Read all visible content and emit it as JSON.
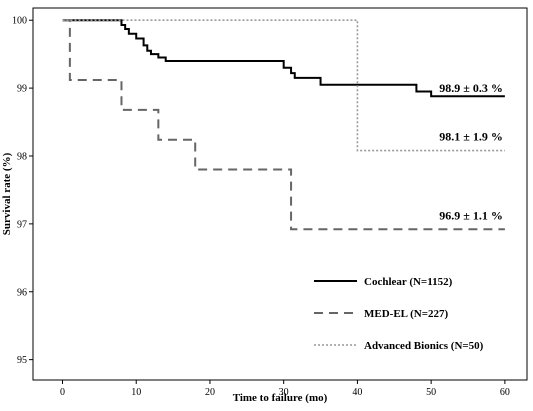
{
  "chart_data": {
    "type": "line",
    "step": true,
    "title": "",
    "xlabel": "Time to failure (mo)",
    "ylabel": "Survival rate (%)",
    "xlim": [
      -4,
      63
    ],
    "ylim": [
      94.7,
      100.18
    ],
    "xticks": [
      "0",
      "10",
      "20",
      "30",
      "40",
      "50",
      "60"
    ],
    "yticks": [
      "95",
      "96",
      "97",
      "98",
      "99",
      "100"
    ],
    "grid": false,
    "legend_position": "bottom-right",
    "series": [
      {
        "name": "Cochlear (N=1152)",
        "color": "#000000",
        "style": "solid",
        "x": [
          0,
          8,
          8.5,
          9,
          10,
          11,
          11.5,
          12,
          13,
          14,
          20,
          30,
          31,
          31.5,
          35,
          40,
          48,
          50,
          60
        ],
        "y": [
          100,
          99.93,
          99.87,
          99.8,
          99.73,
          99.63,
          99.55,
          99.5,
          99.45,
          99.4,
          99.4,
          99.3,
          99.22,
          99.15,
          99.05,
          99.05,
          98.95,
          98.88,
          98.88
        ]
      },
      {
        "name": "MED-EL (N=227)",
        "color": "#666666",
        "style": "dashed",
        "x": [
          0,
          1,
          8,
          13,
          14,
          18,
          31,
          60
        ],
        "y": [
          100,
          99.12,
          98.68,
          98.24,
          98.24,
          97.8,
          96.92,
          96.92
        ]
      },
      {
        "name": "Advanced Bionics (N=50)",
        "color": "#999999",
        "style": "dotted",
        "x": [
          0,
          40,
          60
        ],
        "y": [
          100,
          98.08,
          98.08
        ]
      }
    ],
    "annotations": [
      {
        "text": "98.9 ± 0.3 %",
        "x": 60,
        "y": 98.88
      },
      {
        "text": "98.1 ± 1.9 %",
        "x": 60,
        "y": 98.08
      },
      {
        "text": "96.9 ± 1.1 %",
        "x": 60,
        "y": 96.92
      }
    ]
  }
}
